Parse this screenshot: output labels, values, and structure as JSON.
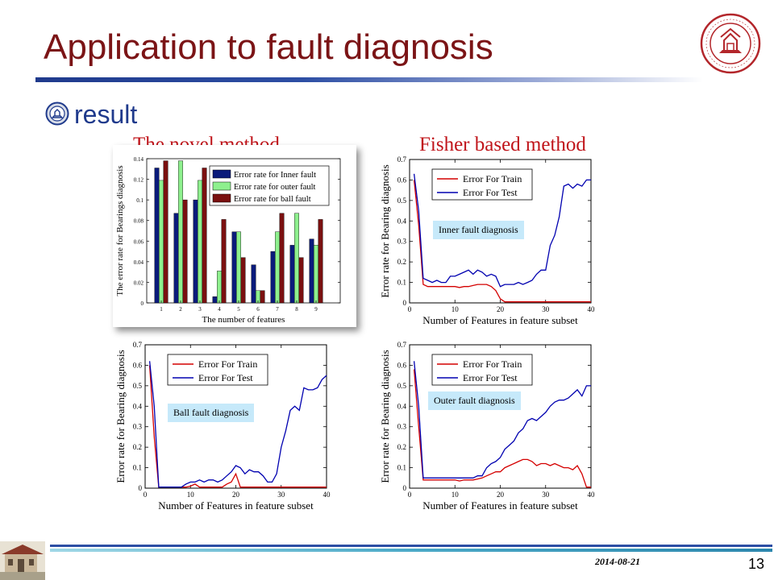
{
  "slide": {
    "title": "Application to fault diagnosis",
    "bullet": "result",
    "heading_left": "The novel method",
    "heading_right": "Fisher based method",
    "date": "2014-08-21",
    "page_number": "13",
    "colors": {
      "title": "#7b1416",
      "bullet": "#1f3a8c",
      "heading": "#c0141a",
      "train": "#d40000",
      "test": "#0000b0",
      "info_box": "#c6e9fa"
    }
  },
  "chart_data": [
    {
      "id": "bar",
      "type": "bar",
      "categories": [
        "1",
        "2",
        "3",
        "4",
        "5",
        "6",
        "7",
        "8",
        "9"
      ],
      "series": [
        {
          "name": "Error rate for Inner fault",
          "color": "#0a1a7a",
          "values": [
            0.131,
            0.087,
            0.1,
            0.006,
            0.069,
            0.037,
            0.05,
            0.056,
            0.062
          ]
        },
        {
          "name": "Error rate for outer fault",
          "color": "#8ef08e",
          "values": [
            0.119,
            0.138,
            0.119,
            0.031,
            0.069,
            0.012,
            0.069,
            0.087,
            0.056
          ]
        },
        {
          "name": "Error rate for ball fault",
          "color": "#7a1010",
          "values": [
            0.138,
            0.1,
            0.131,
            0.081,
            0.044,
            0.012,
            0.087,
            0.044,
            0.081
          ]
        }
      ],
      "xlabel": "The number of features",
      "ylabel": "The error rate for  Bearings diagnosis",
      "ylim": [
        0,
        0.14
      ],
      "yticks": [
        "0",
        "0.02",
        "0.04",
        "0.06",
        "0.08",
        "0.1",
        "0.12",
        "0.14"
      ],
      "xticks": [
        "1",
        "2",
        "3",
        "4",
        "5",
        "6",
        "7",
        "8",
        "9"
      ],
      "legend": "top-right"
    },
    {
      "id": "inner",
      "type": "line",
      "annotation": "Inner fault diagnosis",
      "x": [
        1,
        2,
        3,
        4,
        5,
        6,
        7,
        8,
        9,
        10,
        11,
        12,
        13,
        14,
        15,
        16,
        17,
        18,
        19,
        20,
        21,
        22,
        23,
        24,
        25,
        26,
        27,
        28,
        29,
        30,
        31,
        32,
        33,
        34,
        35,
        36,
        37,
        38,
        39,
        40
      ],
      "series": [
        {
          "name": "Error For Train",
          "color": "#d40000",
          "values": [
            0.6,
            0.38,
            0.09,
            0.08,
            0.08,
            0.08,
            0.08,
            0.08,
            0.08,
            0.08,
            0.075,
            0.08,
            0.08,
            0.085,
            0.09,
            0.09,
            0.09,
            0.08,
            0.06,
            0.02,
            0.005,
            0.005,
            0.005,
            0.005,
            0.005,
            0.005,
            0.005,
            0.005,
            0.005,
            0.005,
            0.005,
            0.005,
            0.005,
            0.005,
            0.005,
            0.005,
            0.005,
            0.005,
            0.005,
            0.005
          ]
        },
        {
          "name": "Error For Test",
          "color": "#0000b0",
          "values": [
            0.63,
            0.45,
            0.12,
            0.11,
            0.1,
            0.11,
            0.1,
            0.1,
            0.13,
            0.13,
            0.14,
            0.15,
            0.16,
            0.14,
            0.16,
            0.15,
            0.13,
            0.14,
            0.13,
            0.08,
            0.09,
            0.09,
            0.09,
            0.1,
            0.09,
            0.1,
            0.11,
            0.14,
            0.16,
            0.16,
            0.28,
            0.33,
            0.42,
            0.57,
            0.58,
            0.56,
            0.58,
            0.57,
            0.6,
            0.6
          ]
        }
      ],
      "xlabel": "Number of Features in feature subset",
      "ylabel": "Error rate for Bearing diagnosis",
      "xlim": [
        0,
        40
      ],
      "ylim": [
        0,
        0.7
      ],
      "xticks": [
        "0",
        "10",
        "20",
        "30",
        "40"
      ],
      "yticks": [
        "0",
        "0.1",
        "0.2",
        "0.3",
        "0.4",
        "0.5",
        "0.6",
        "0.7"
      ],
      "legend": "top-left"
    },
    {
      "id": "ball",
      "type": "line",
      "annotation": "Ball fault diagnosis",
      "x": [
        1,
        2,
        3,
        4,
        5,
        6,
        7,
        8,
        9,
        10,
        11,
        12,
        13,
        14,
        15,
        16,
        17,
        18,
        19,
        20,
        21,
        22,
        23,
        24,
        25,
        26,
        27,
        28,
        29,
        30,
        31,
        32,
        33,
        34,
        35,
        36,
        37,
        38,
        39,
        40
      ],
      "series": [
        {
          "name": "Error For Train",
          "color": "#d40000",
          "values": [
            0.6,
            0.25,
            0.005,
            0.005,
            0.005,
            0.005,
            0.005,
            0.005,
            0.005,
            0.01,
            0.02,
            0.005,
            0.005,
            0.005,
            0.005,
            0.005,
            0.005,
            0.02,
            0.03,
            0.07,
            0.005,
            0.005,
            0.005,
            0.005,
            0.005,
            0.005,
            0.005,
            0.005,
            0.005,
            0.005,
            0.005,
            0.005,
            0.005,
            0.005,
            0.005,
            0.005,
            0.005,
            0.005,
            0.005,
            0.005
          ]
        },
        {
          "name": "Error For Test",
          "color": "#0000b0",
          "values": [
            0.62,
            0.4,
            0.005,
            0.005,
            0.005,
            0.005,
            0.005,
            0.005,
            0.02,
            0.03,
            0.03,
            0.04,
            0.03,
            0.04,
            0.04,
            0.03,
            0.04,
            0.06,
            0.08,
            0.11,
            0.1,
            0.07,
            0.09,
            0.08,
            0.08,
            0.06,
            0.03,
            0.03,
            0.07,
            0.2,
            0.28,
            0.38,
            0.4,
            0.38,
            0.49,
            0.48,
            0.48,
            0.49,
            0.53,
            0.55
          ]
        }
      ],
      "xlabel": "Number of Features in feature subset",
      "ylabel": "Error rate for Bearing diagnosis",
      "xlim": [
        0,
        40
      ],
      "ylim": [
        0,
        0.7
      ],
      "xticks": [
        "0",
        "10",
        "20",
        "30",
        "40"
      ],
      "yticks": [
        "0",
        "0.1",
        "0.2",
        "0.3",
        "0.4",
        "0.5",
        "0.6",
        "0.7"
      ],
      "legend": "top-left"
    },
    {
      "id": "outer",
      "type": "line",
      "annotation": "Outer fault diagnosis",
      "x": [
        1,
        2,
        3,
        4,
        5,
        6,
        7,
        8,
        9,
        10,
        11,
        12,
        13,
        14,
        15,
        16,
        17,
        18,
        19,
        20,
        21,
        22,
        23,
        24,
        25,
        26,
        27,
        28,
        29,
        30,
        31,
        32,
        33,
        34,
        35,
        36,
        37,
        38,
        39,
        40
      ],
      "series": [
        {
          "name": "Error For Train",
          "color": "#d40000",
          "values": [
            0.58,
            0.3,
            0.04,
            0.04,
            0.04,
            0.04,
            0.04,
            0.04,
            0.04,
            0.04,
            0.035,
            0.04,
            0.04,
            0.04,
            0.045,
            0.05,
            0.06,
            0.07,
            0.08,
            0.08,
            0.1,
            0.11,
            0.12,
            0.13,
            0.14,
            0.14,
            0.13,
            0.11,
            0.12,
            0.12,
            0.11,
            0.12,
            0.11,
            0.1,
            0.1,
            0.09,
            0.11,
            0.07,
            0.005,
            0.005
          ]
        },
        {
          "name": "Error For Test",
          "color": "#0000b0",
          "values": [
            0.62,
            0.4,
            0.05,
            0.05,
            0.05,
            0.05,
            0.05,
            0.05,
            0.05,
            0.05,
            0.05,
            0.05,
            0.05,
            0.05,
            0.06,
            0.06,
            0.1,
            0.12,
            0.13,
            0.15,
            0.19,
            0.21,
            0.23,
            0.27,
            0.29,
            0.33,
            0.34,
            0.33,
            0.35,
            0.37,
            0.4,
            0.42,
            0.43,
            0.43,
            0.44,
            0.46,
            0.48,
            0.45,
            0.5,
            0.5
          ]
        }
      ],
      "xlabel": "Number of Features in feature subset",
      "ylabel": "Error rate for Bearing diagnosis",
      "xlim": [
        0,
        40
      ],
      "ylim": [
        0,
        0.7
      ],
      "xticks": [
        "0",
        "10",
        "20",
        "30",
        "40"
      ],
      "yticks": [
        "0",
        "0.1",
        "0.2",
        "0.3",
        "0.4",
        "0.5",
        "0.6",
        "0.7"
      ],
      "legend": "top-left"
    }
  ]
}
